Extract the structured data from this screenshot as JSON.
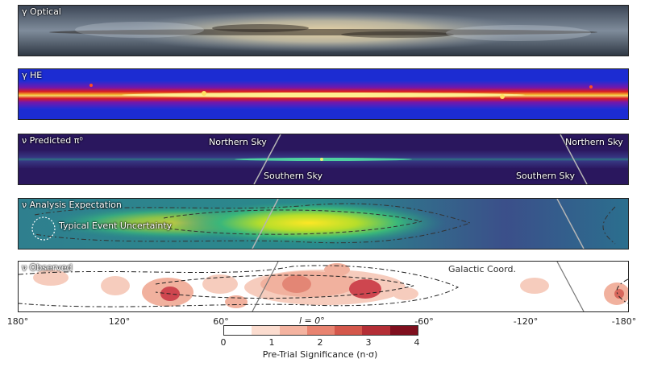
{
  "panels": {
    "optical": "γ Optical",
    "he": "γ HE",
    "predicted": "ν Predicted π⁰",
    "expectation": "ν Analysis Expectation",
    "observed": "ν Observed"
  },
  "sky": {
    "northern": "Northern Sky",
    "southern": "Southern Sky"
  },
  "expectation_note": "Typical Event Uncertainty",
  "coord_label": "Galactic Coord.",
  "axis_ticks": [
    "180°",
    "120°",
    "60°",
    "0°",
    "-60°",
    "-120°",
    "-180°"
  ],
  "colorbar": {
    "symbol_label": "l = 0°",
    "ticks": [
      "0",
      "1",
      "2",
      "3",
      "4"
    ],
    "title": "Pre-Trial Significance (n·σ)",
    "colors": [
      "#ffffff",
      "#fbdccf",
      "#f4b3a0",
      "#e88370",
      "#d4574b",
      "#b42e36",
      "#7f0f1e"
    ]
  }
}
